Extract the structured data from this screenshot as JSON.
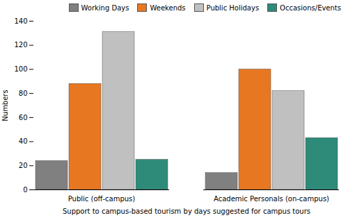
{
  "chart_data": {
    "type": "bar",
    "categories": [
      "Public (off-campus)",
      "Academic Personals (on-campus)"
    ],
    "series": [
      {
        "name": "Working Days",
        "color": "#808080",
        "values": [
          24,
          14
        ]
      },
      {
        "name": "Weekends",
        "color": "#E87722",
        "values": [
          88,
          100
        ]
      },
      {
        "name": "Public Holidays",
        "color": "#C0C0C0",
        "values": [
          131,
          82
        ]
      },
      {
        "name": "Occasions/Events",
        "color": "#2E8B7A",
        "values": [
          25,
          43
        ]
      }
    ],
    "xlabel": "Support to campus-based tourism by days suggested for campus tours",
    "ylabel": "Numbers",
    "ylim": [
      0,
      140
    ],
    "yticks": [
      0,
      20,
      40,
      60,
      80,
      100,
      120,
      140
    ],
    "grid": false,
    "legend": "upper right"
  }
}
